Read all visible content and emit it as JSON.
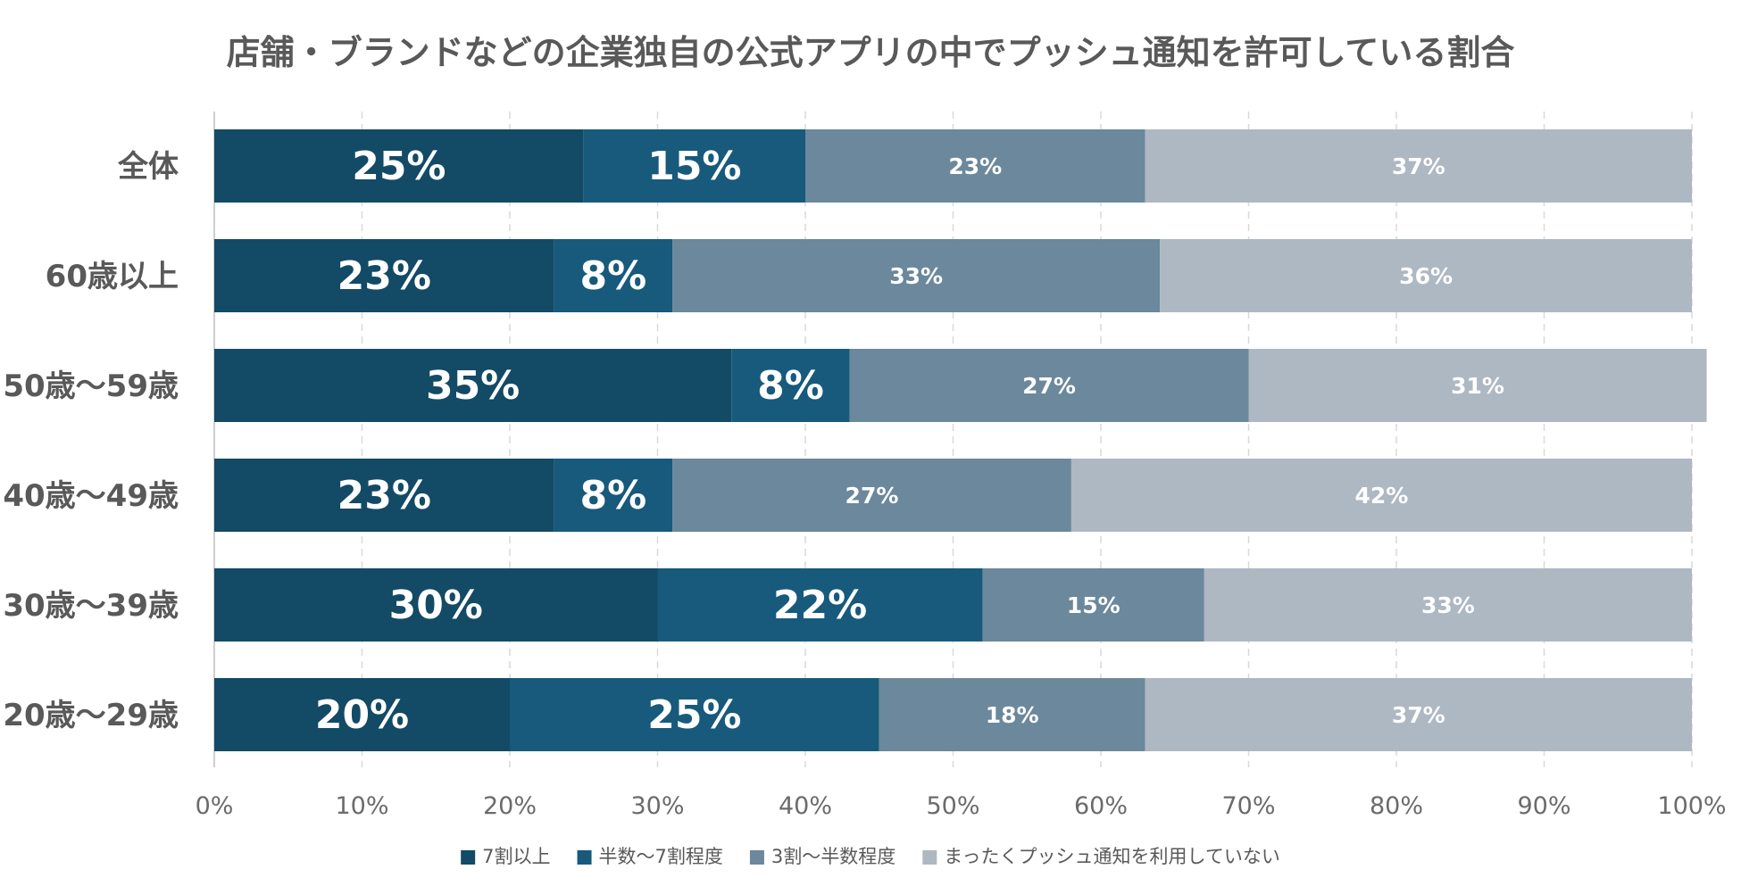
{
  "chart_data": {
    "type": "bar",
    "orientation": "horizontal",
    "stacked": true,
    "title": "店舗・ブランドなどの企業独自の公式アプリの中でプッシュ通知を許可している割合",
    "categories": [
      "全体",
      "60歳以上",
      "50歳〜59歳",
      "40歳〜49歳",
      "30歳〜39歳",
      "20歳〜29歳"
    ],
    "series": [
      {
        "name": "7割以上",
        "values": [
          25,
          23,
          35,
          23,
          30,
          20
        ],
        "labels": [
          "25%",
          "23%",
          "35%",
          "23%",
          "30%",
          "20%"
        ],
        "color": "#134a66"
      },
      {
        "name": "半数〜7割程度",
        "values": [
          15,
          8,
          8,
          8,
          22,
          25
        ],
        "labels": [
          "15%",
          "8%",
          "8%",
          "8%",
          "22%",
          "25%"
        ],
        "color": "#175a7b"
      },
      {
        "name": "3割〜半数程度",
        "values": [
          23,
          33,
          27,
          27,
          15,
          18
        ],
        "labels": [
          "23%",
          "33%",
          "27%",
          "27%",
          "15%",
          "18%"
        ],
        "color": "#6b889c"
      },
      {
        "name": "まったくプッシュ通知を利用していない",
        "values": [
          37,
          36,
          31,
          42,
          33,
          37
        ],
        "labels": [
          "37%",
          "36%",
          "31%",
          "42%",
          "33%",
          "37%"
        ],
        "color": "#aeb8c2"
      }
    ],
    "xlim": [
      0,
      100
    ],
    "x_ticks": [
      0,
      10,
      20,
      30,
      40,
      50,
      60,
      70,
      80,
      90,
      100
    ],
    "x_tick_labels": [
      "0%",
      "10%",
      "20%",
      "30%",
      "40%",
      "50%",
      "60%",
      "70%",
      "80%",
      "90%",
      "100%"
    ],
    "grid": "vertical-dashed",
    "legend_position": "bottom-center",
    "colors": {
      "title": "#595959",
      "category_label": "#595959",
      "tick_label": "#6b6b6b",
      "legend_text": "#595959",
      "grid": "#d9d9d9",
      "axis": "#bfbfbf",
      "data_label": "#ffffff"
    }
  }
}
